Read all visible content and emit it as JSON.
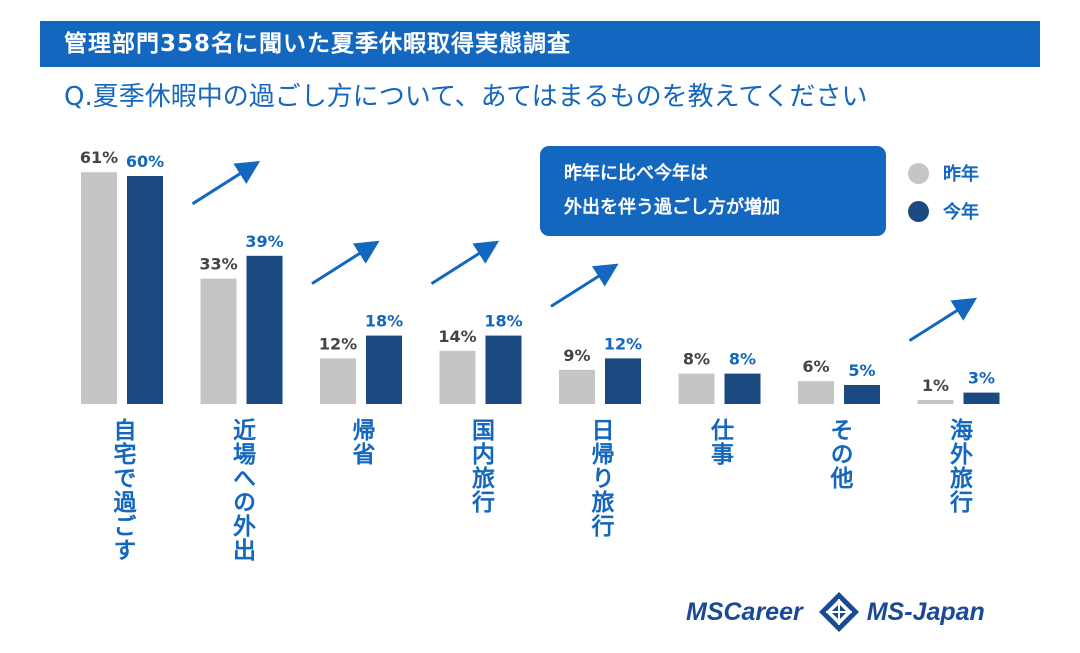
{
  "header": {
    "title": "管理部門358名に聞いた夏季休暇取得実態調査"
  },
  "question": "Q.夏季休暇中の過ごし方について、あてはまるものを教えてください",
  "callout": {
    "line1": "昨年に比べ今年は",
    "line2": "外出を伴う過ごし方が増加"
  },
  "colors": {
    "previous": "#c5c5c5",
    "current": "#1b4a80",
    "accent": "#1467be"
  },
  "chart_data": {
    "type": "bar",
    "title": "Q.夏季休暇中の過ごし方について、あてはまるものを教えてください",
    "categories": [
      "自宅で過ごす",
      "近場への外出",
      "帰省",
      "国内旅行",
      "日帰り旅行",
      "仕事",
      "その他",
      "海外旅行"
    ],
    "series": [
      {
        "name": "昨年",
        "values": [
          61,
          33,
          12,
          14,
          9,
          8,
          6,
          1
        ],
        "labels": [
          "61%",
          "33%",
          "12%",
          "14%",
          "9%",
          "8%",
          "6%",
          "1%"
        ]
      },
      {
        "name": "今年",
        "values": [
          60,
          39,
          18,
          18,
          12,
          8,
          5,
          3
        ],
        "labels": [
          "60%",
          "39%",
          "18%",
          "18%",
          "12%",
          "8%",
          "5%",
          "3%"
        ]
      }
    ],
    "unit": "%",
    "increase_arrows": [
      "近場への外出",
      "帰省",
      "国内旅行",
      "日帰り旅行",
      "海外旅行"
    ],
    "legend_position": "top-right",
    "grid": false
  },
  "logos": {
    "brand1": "MSCareer",
    "brand2": "MS-Japan"
  }
}
